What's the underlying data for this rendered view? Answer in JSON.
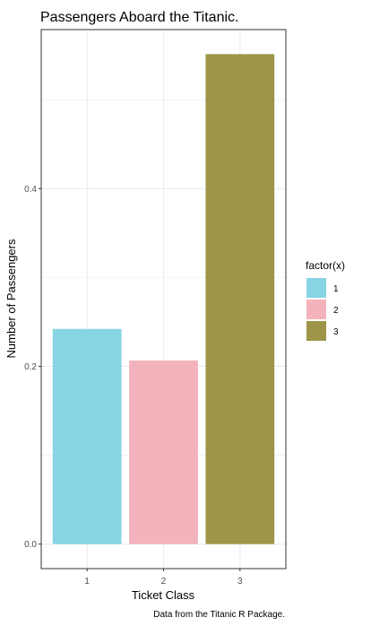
{
  "chart_data": {
    "type": "bar",
    "title": "Passengers Aboard the Titanic.",
    "xlabel": "Ticket Class",
    "ylabel": "Number of Passengers",
    "caption": "Data from the Titanic R Package.",
    "categories": [
      "1",
      "2",
      "3"
    ],
    "values": [
      0.2421,
      0.2066,
      0.5513
    ],
    "colors": [
      "#86D4E4",
      "#F4B3BC",
      "#9E9548"
    ],
    "ylim": [
      -0.0276,
      0.5789
    ],
    "yticks": [
      0.0,
      0.2,
      0.4
    ],
    "ytick_labels": [
      "0.0",
      "0.2",
      "0.4"
    ],
    "grid": true,
    "legend": {
      "title": "factor(x)",
      "placement": "right",
      "labels": [
        "1",
        "2",
        "3"
      ]
    }
  }
}
